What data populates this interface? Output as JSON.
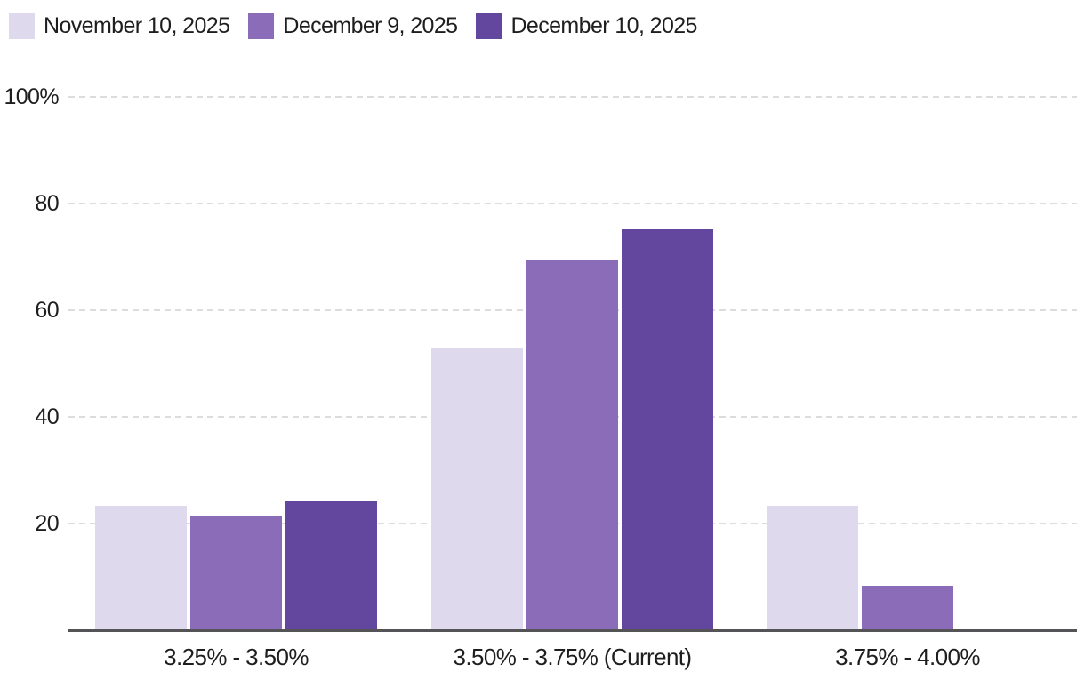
{
  "chart_data": {
    "type": "bar",
    "title": "",
    "categories": [
      "3.25% - 3.50%",
      "3.50% - 3.75% (Current)",
      "3.75% - 4.00%"
    ],
    "series": [
      {
        "name": "November 10, 2025",
        "color": "#DFD9ED",
        "values": [
          23.2,
          52.6,
          23.1
        ]
      },
      {
        "name": "December 9, 2025",
        "color": "#8A6CB8",
        "values": [
          21.2,
          69.4,
          8.2
        ]
      },
      {
        "name": "December 10, 2025",
        "color": "#63479E",
        "values": [
          24.0,
          75.0,
          0
        ]
      }
    ],
    "xlabel": "",
    "ylabel": "",
    "ylim": [
      0,
      100
    ],
    "yticks": [
      {
        "value": 20,
        "label": "20"
      },
      {
        "value": 40,
        "label": "40"
      },
      {
        "value": 60,
        "label": "60"
      },
      {
        "value": 80,
        "label": "80"
      },
      {
        "value": 100,
        "label": "100%"
      }
    ],
    "grid": "horizontal-dashed",
    "legend_position": "top-left"
  },
  "colors": {
    "background": "#FFFFFF",
    "grid": "#DCDCDC",
    "axis": "#545456",
    "text": "#1E1E1E",
    "series_light": "#DFD9ED",
    "series_medium": "#8A6CB8",
    "series_dark": "#63479E"
  }
}
